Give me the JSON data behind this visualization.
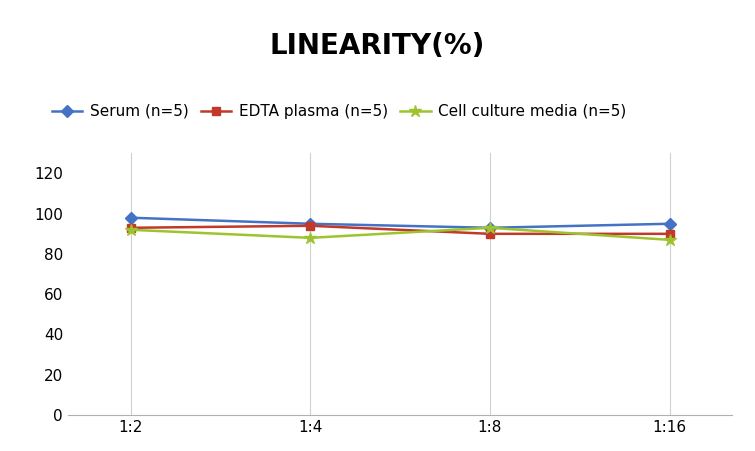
{
  "title": "LINEARITY(%)",
  "title_fontsize": 20,
  "title_fontweight": "bold",
  "x_labels": [
    "1:2",
    "1:4",
    "1:8",
    "1:16"
  ],
  "x_positions": [
    0,
    1,
    2,
    3
  ],
  "series": [
    {
      "label": "Serum (n=5)",
      "values": [
        98,
        95,
        93,
        95
      ],
      "color": "#4472C4",
      "marker": "D",
      "markersize": 6,
      "linewidth": 1.8
    },
    {
      "label": "EDTA plasma (n=5)",
      "values": [
        93,
        94,
        90,
        90
      ],
      "color": "#C0392B",
      "marker": "s",
      "markersize": 6,
      "linewidth": 1.8
    },
    {
      "label": "Cell culture media (n=5)",
      "values": [
        92,
        88,
        93,
        87
      ],
      "color": "#9DC42E",
      "marker": "*",
      "markersize": 9,
      "linewidth": 1.8
    }
  ],
  "ylim": [
    0,
    130
  ],
  "yticks": [
    0,
    20,
    40,
    60,
    80,
    100,
    120
  ],
  "background_color": "#ffffff",
  "grid_color": "#d0d0d0",
  "legend_fontsize": 11,
  "tick_fontsize": 11
}
